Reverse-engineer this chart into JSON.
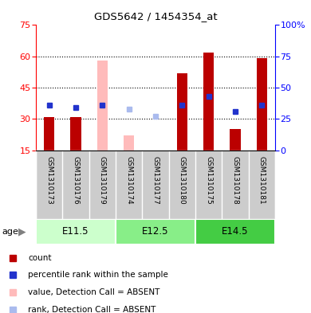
{
  "title": "GDS5642 / 1454354_at",
  "samples": [
    "GSM1310173",
    "GSM1310176",
    "GSM1310179",
    "GSM1310174",
    "GSM1310177",
    "GSM1310180",
    "GSM1310175",
    "GSM1310178",
    "GSM1310181"
  ],
  "age_groups": [
    {
      "label": "E11.5",
      "indices": [
        0,
        1,
        2
      ]
    },
    {
      "label": "E12.5",
      "indices": [
        3,
        4,
        5
      ]
    },
    {
      "label": "E14.5",
      "indices": [
        6,
        7,
        8
      ]
    }
  ],
  "red_bars": [
    31,
    31,
    null,
    null,
    null,
    52,
    62,
    25,
    59
  ],
  "pink_bars": [
    null,
    null,
    58,
    22,
    null,
    null,
    null,
    null,
    null
  ],
  "blue_squares": [
    36,
    34,
    36,
    null,
    null,
    36,
    43,
    31,
    36
  ],
  "light_blue_squares": [
    null,
    null,
    null,
    33,
    27,
    null,
    null,
    null,
    null
  ],
  "ylim_left": [
    15,
    75
  ],
  "yticks_left": [
    15,
    30,
    45,
    60,
    75
  ],
  "ylim_right": [
    0,
    100
  ],
  "yticks_right": [
    0,
    25,
    50,
    75,
    100
  ],
  "red_bar_color": "#bb0000",
  "pink_bar_color": "#ffbbbb",
  "blue_sq_color": "#2233cc",
  "light_blue_sq_color": "#aabbee",
  "bg_label": "#cccccc",
  "age_colors": [
    "#ccffcc",
    "#88ee88",
    "#44cc44"
  ],
  "bar_width": 0.4,
  "dotted_lines": [
    30,
    45,
    60
  ]
}
